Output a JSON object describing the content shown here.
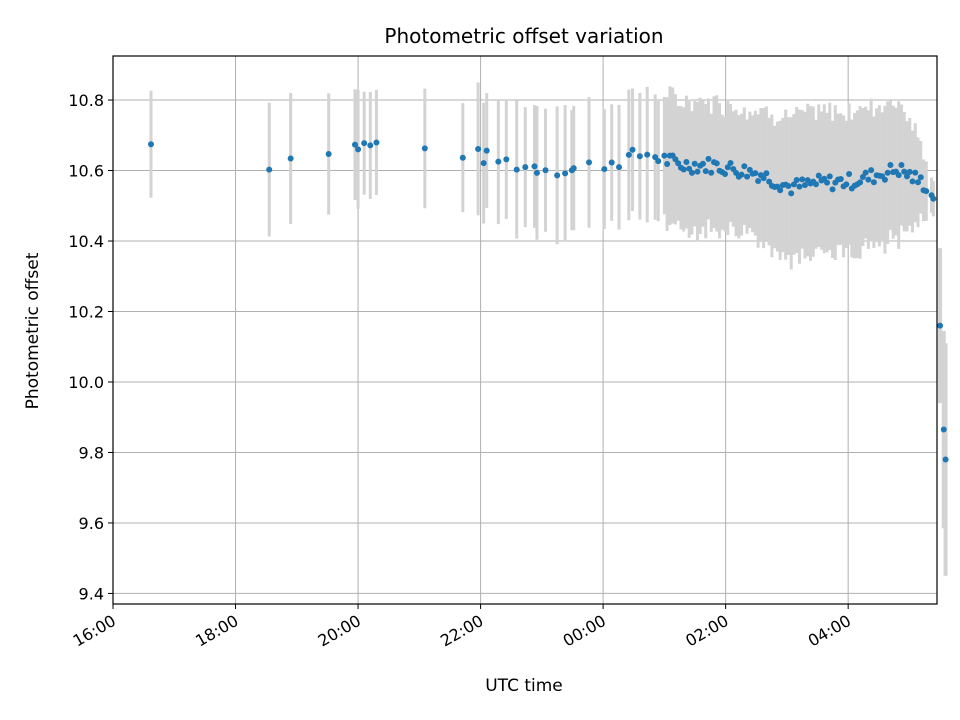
{
  "chart_data": {
    "type": "scatter",
    "title": "Photometric offset variation",
    "xlabel": "UTC time",
    "ylabel": "Photometric offset",
    "x_unit": "hours since 16:00 UTC",
    "xlim": [
      0,
      13.45
    ],
    "ylim": [
      9.37,
      10.925
    ],
    "x_ticks": [
      0,
      2,
      4,
      6,
      8,
      10,
      12
    ],
    "x_tick_labels": [
      "16:00",
      "18:00",
      "20:00",
      "22:00",
      "00:00",
      "02:00",
      "04:00"
    ],
    "y_ticks": [
      9.4,
      9.6,
      9.8,
      10.0,
      10.2,
      10.4,
      10.6,
      10.8
    ],
    "y_tick_labels": [
      "9.4",
      "9.6",
      "9.8",
      "10.0",
      "10.2",
      "10.4",
      "10.6",
      "10.8"
    ],
    "grid": true,
    "colors": {
      "point": "#1f77b4",
      "errorbar": "#d3d3d3",
      "grid": "#b0b0b0"
    },
    "series": [
      {
        "x": [
          0.62,
          2.55,
          3.52,
          4.29,
          5.09,
          5.71,
          6.76,
          7.51,
          8.06,
          8.72,
          9.26,
          9.79,
          10.54,
          11.06,
          11.48,
          12.08,
          12.83,
          13.39,
          13.46
        ],
        "y": [
          10.675,
          10.62,
          10.666,
          10.672,
          10.66,
          10.651,
          10.611,
          10.602,
          10.622,
          10.648,
          10.616,
          10.615,
          10.592,
          10.552,
          10.564,
          10.57,
          10.604,
          10.546,
          10.529
        ],
        "err": [
          0.15,
          0.2,
          0.16,
          0.16,
          0.17,
          0.17,
          0.18,
          0.18,
          0.18,
          0.18,
          0.18,
          0.18,
          0.18,
          0.2,
          0.2,
          0.2,
          0.2,
          0.05,
          0.05
        ]
      }
    ],
    "drop_points": {
      "x": [
        13.5,
        13.56,
        13.59
      ],
      "y": [
        10.16,
        9.865,
        9.78
      ],
      "err": [
        0.22,
        0.28,
        0.33
      ]
    }
  }
}
